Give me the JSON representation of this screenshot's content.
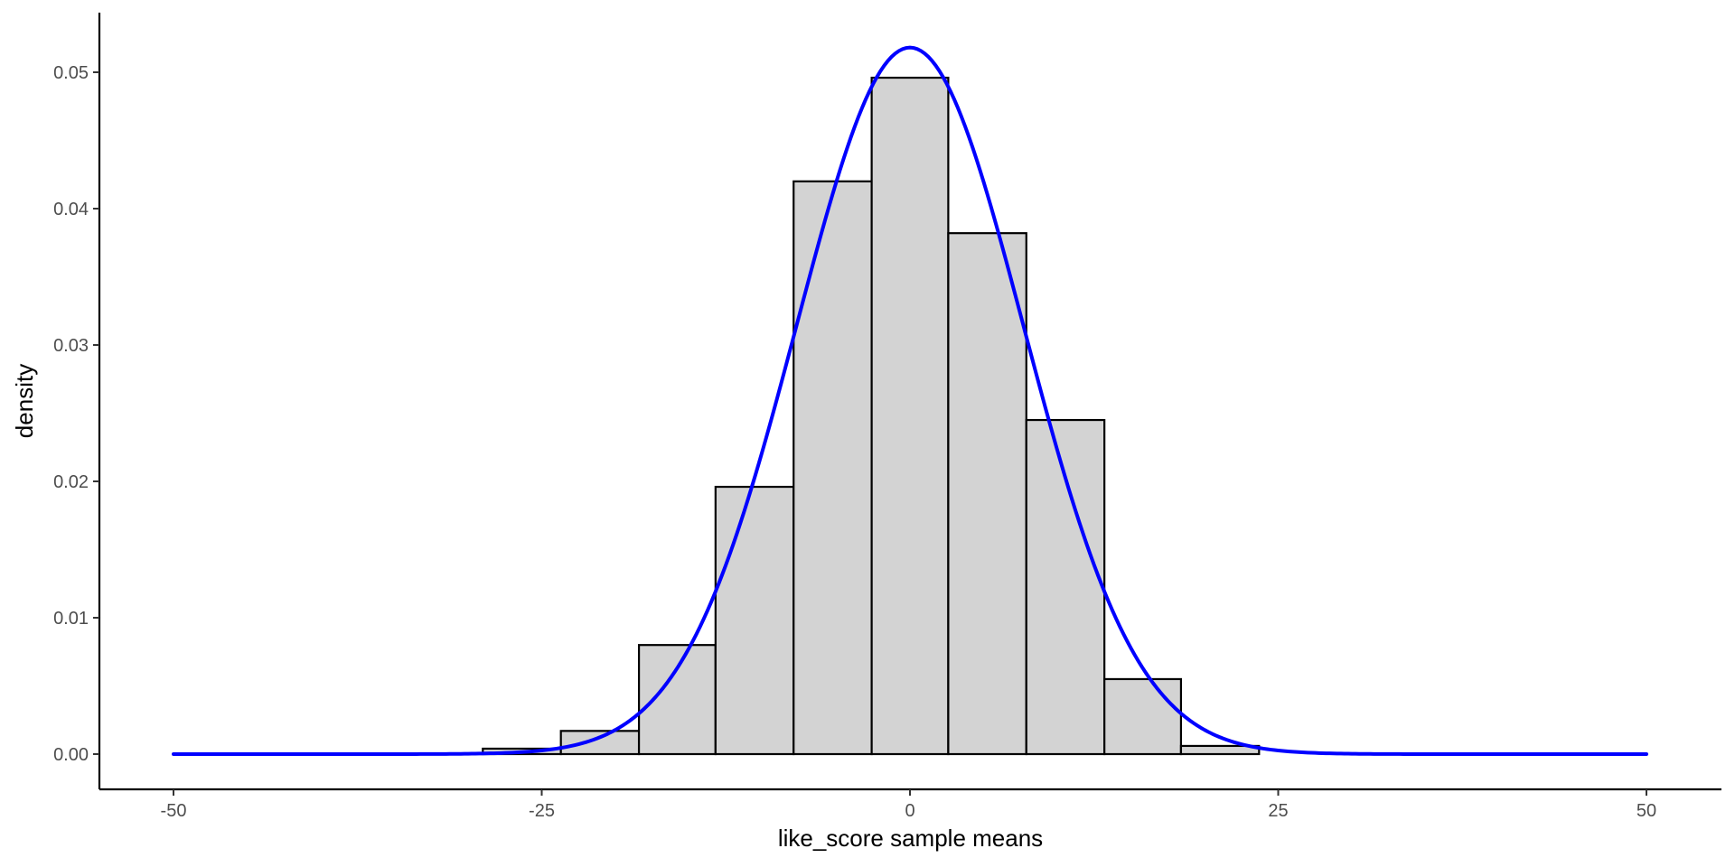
{
  "chart_data": {
    "type": "histogram",
    "title": "",
    "xlabel": "like_score sample means",
    "ylabel": "density",
    "xlim": [
      -50,
      50
    ],
    "ylim": [
      0,
      0.0545
    ],
    "x_ticks": [
      -50,
      -25,
      0,
      25,
      50
    ],
    "x_tick_labels": [
      "-50",
      "-25",
      "0",
      "25",
      "50"
    ],
    "y_ticks": [
      0,
      0.01,
      0.02,
      0.03,
      0.04,
      0.05
    ],
    "y_tick_labels": [
      "0.00",
      "0.01",
      "0.02",
      "0.03",
      "0.04",
      "0.05"
    ],
    "grid": false,
    "legend": "none",
    "bars": {
      "fill": "#d3d3d3",
      "outline": "#000000",
      "bins": [
        {
          "x0": -29.0,
          "x1": -23.7,
          "density": 0.0004
        },
        {
          "x0": -23.7,
          "x1": -18.4,
          "density": 0.0017
        },
        {
          "x0": -18.4,
          "x1": -13.2,
          "density": 0.008
        },
        {
          "x0": -13.2,
          "x1": -7.9,
          "density": 0.0196
        },
        {
          "x0": -7.9,
          "x1": -2.6,
          "density": 0.042
        },
        {
          "x0": -2.6,
          "x1": 2.6,
          "density": 0.0496
        },
        {
          "x0": 2.6,
          "x1": 7.9,
          "density": 0.0382
        },
        {
          "x0": 7.9,
          "x1": 13.2,
          "density": 0.0245
        },
        {
          "x0": 13.2,
          "x1": 18.4,
          "density": 0.0055
        },
        {
          "x0": 18.4,
          "x1": 23.7,
          "density": 0.0006
        }
      ]
    },
    "curve": {
      "type": "normal-density",
      "color": "#0000ff",
      "mean": 0,
      "sd": 7.7,
      "x_range": [
        -50,
        50
      ]
    }
  }
}
